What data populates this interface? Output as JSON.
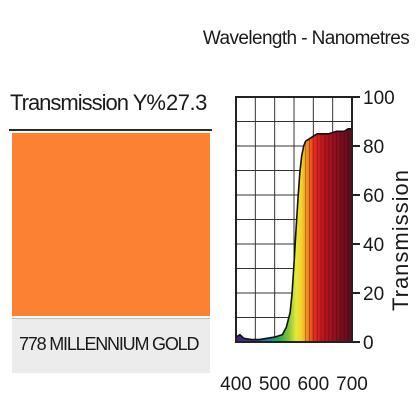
{
  "chart_title": "Wavelength - Nanometres",
  "transmission_label": "Transmission Y%",
  "transmission_value": "27.3",
  "filter_name": "778 MILLENNIUM GOLD",
  "swatch_color": "#fd8133",
  "chart_data": {
    "type": "area",
    "title": "Wavelength - Nanometres",
    "xlabel": "",
    "ylabel": "Transmission",
    "xlim": [
      400,
      700
    ],
    "ylim": [
      0,
      100
    ],
    "x_ticks": [
      "400",
      "500",
      "600",
      "700"
    ],
    "y_ticks": [
      "0",
      "20",
      "40",
      "60",
      "80",
      "100"
    ],
    "grid": true,
    "series": [
      {
        "x": [
          400,
          410,
          420,
          440,
          460,
          480,
          500,
          520,
          530,
          540,
          545,
          550,
          555,
          560,
          565,
          570,
          575,
          580,
          585,
          590,
          600,
          610,
          620,
          640,
          660,
          680,
          690,
          700
        ],
        "y": [
          2,
          3,
          1.5,
          1,
          1,
          1.5,
          2,
          3,
          6,
          12,
          20,
          32,
          45,
          58,
          69,
          76,
          80,
          82,
          82.5,
          83,
          84,
          85,
          85,
          85,
          86,
          86,
          87,
          87
        ]
      }
    ]
  }
}
